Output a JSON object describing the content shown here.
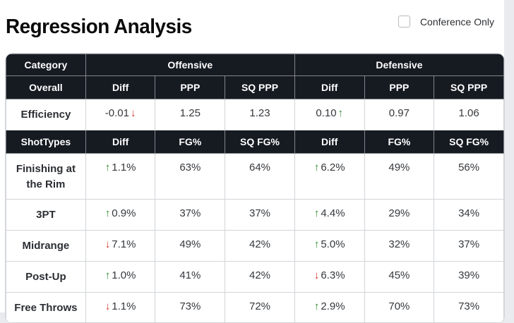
{
  "page": {
    "title": "Regression Analysis",
    "conference_only_label": "Conference Only"
  },
  "colors": {
    "header_bg": "#161a21",
    "up_arrow": "#2e8b2e",
    "down_arrow": "#d93025"
  },
  "table": {
    "group_header": {
      "category": "Category",
      "offensive": "Offensive",
      "defensive": "Defensive"
    },
    "overall": {
      "label": "Overall",
      "columns": [
        "Diff",
        "PPP",
        "SQ PPP",
        "Diff",
        "PPP",
        "SQ PPP"
      ],
      "row": {
        "label": "Efficiency",
        "off": {
          "diff": "-0.01",
          "dir": "down",
          "ppp": "1.25",
          "sq_ppp": "1.23"
        },
        "def": {
          "diff": "0.10",
          "dir": "up",
          "ppp": "0.97",
          "sq_ppp": "1.06"
        }
      }
    },
    "shot_types": {
      "label": "ShotTypes",
      "columns": [
        "Diff",
        "FG%",
        "SQ FG%",
        "Diff",
        "FG%",
        "SQ FG%"
      ],
      "rows": [
        {
          "label": "Finishing at the Rim",
          "off": {
            "diff": "1.1%",
            "dir": "up",
            "fg": "63%",
            "sq_fg": "64%"
          },
          "def": {
            "diff": "6.2%",
            "dir": "up",
            "fg": "49%",
            "sq_fg": "56%"
          }
        },
        {
          "label": "3PT",
          "off": {
            "diff": "0.9%",
            "dir": "up",
            "fg": "37%",
            "sq_fg": "37%"
          },
          "def": {
            "diff": "4.4%",
            "dir": "up",
            "fg": "29%",
            "sq_fg": "34%"
          }
        },
        {
          "label": "Midrange",
          "off": {
            "diff": "7.1%",
            "dir": "down",
            "fg": "49%",
            "sq_fg": "42%"
          },
          "def": {
            "diff": "5.0%",
            "dir": "up",
            "fg": "32%",
            "sq_fg": "37%"
          }
        },
        {
          "label": "Post-Up",
          "off": {
            "diff": "1.0%",
            "dir": "up",
            "fg": "41%",
            "sq_fg": "42%"
          },
          "def": {
            "diff": "6.3%",
            "dir": "down",
            "fg": "45%",
            "sq_fg": "39%"
          }
        },
        {
          "label": "Free Throws",
          "off": {
            "diff": "1.1%",
            "dir": "down",
            "fg": "73%",
            "sq_fg": "72%"
          },
          "def": {
            "diff": "2.9%",
            "dir": "up",
            "fg": "70%",
            "sq_fg": "73%"
          }
        }
      ]
    }
  }
}
